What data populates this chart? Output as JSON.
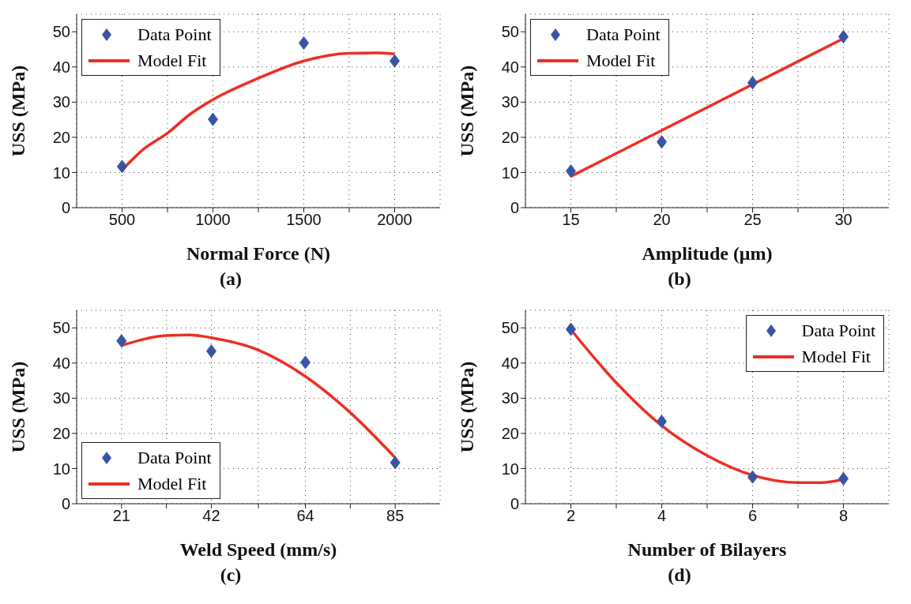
{
  "chart_data": [
    {
      "type": "scatter",
      "xlabel": "Normal Force (N)",
      "ylabel": "USS (MPa)",
      "annotations": [
        "(a)"
      ],
      "xlim": [
        250,
        2250
      ],
      "xticks": [
        500,
        {
          "value": 750,
          "label": null
        },
        1000,
        {
          "value": 1250,
          "label": null
        },
        1500,
        {
          "value": 1750,
          "label": null
        },
        2000
      ],
      "ylim": [
        0,
        55
      ],
      "yticks": [
        0,
        10,
        20,
        30,
        40,
        50
      ],
      "grid": true,
      "legend": "top left",
      "series": [
        {
          "name": "Data Point",
          "type": "scatter",
          "marker": "diamond",
          "color": "#3a54a4",
          "x": [
            500,
            1000,
            1500,
            2000
          ],
          "values": [
            11.7,
            25.1,
            46.8,
            41.7
          ]
        },
        {
          "name": "Model Fit",
          "type": "line",
          "marker": "none",
          "line_style": "solid",
          "color": "#ee2e24",
          "x": [
            500,
            625,
            750,
            875,
            1000,
            1250,
            1500,
            1750,
            1900,
            2000
          ],
          "values": [
            10.7,
            16.9,
            21.2,
            26.6,
            30.7,
            36.8,
            41.7,
            43.9,
            44,
            43.7
          ]
        }
      ]
    },
    {
      "type": "scatter",
      "xlabel": "Amplitude (μm)",
      "ylabel": "USS (MPa)",
      "annotations": [
        "(b)"
      ],
      "xlim": [
        12.5,
        32.5
      ],
      "xticks": [
        15,
        {
          "value": 17.5,
          "label": null
        },
        20,
        {
          "value": 22.5,
          "label": null
        },
        25,
        {
          "value": 27.5,
          "label": null
        },
        30
      ],
      "ylim": [
        0,
        55
      ],
      "yticks": [
        0,
        10,
        20,
        30,
        40,
        50
      ],
      "grid": true,
      "legend": "top left",
      "series": [
        {
          "name": "Data Point",
          "type": "scatter",
          "marker": "diamond",
          "color": "#3a54a4",
          "x": [
            15,
            20,
            25,
            30
          ],
          "values": [
            10.4,
            18.7,
            35.5,
            48.6
          ]
        },
        {
          "name": "Model Fit",
          "type": "line",
          "marker": "none",
          "line_style": "solid",
          "color": "#ee2e24",
          "x": [
            15,
            30
          ],
          "values": [
            8.9,
            48.1
          ]
        }
      ]
    },
    {
      "type": "scatter",
      "xlabel": "Weld Speed (mm/s)",
      "ylabel": "USS (MPa)",
      "annotations": [
        "(c)"
      ],
      "xlim": [
        10.5,
        95.5
      ],
      "xticks": [
        21,
        {
          "value": 31.5,
          "label": null
        },
        42,
        {
          "value": 53,
          "label": null
        },
        64,
        {
          "value": 74.5,
          "label": null
        },
        85
      ],
      "ylim": [
        0,
        55
      ],
      "yticks": [
        0,
        10,
        20,
        30,
        40,
        50
      ],
      "grid": true,
      "legend": "bottom left",
      "series": [
        {
          "name": "Data Point",
          "type": "scatter",
          "marker": "diamond",
          "color": "#3a54a4",
          "x": [
            21,
            42,
            64,
            85
          ],
          "values": [
            46.3,
            43.4,
            40.2,
            11.7
          ]
        },
        {
          "name": "Model Fit",
          "type": "line",
          "marker": "none",
          "line_style": "solid",
          "color": "#ee2e24",
          "x": [
            21,
            31.5,
            37,
            42,
            53,
            64,
            74.5,
            85
          ],
          "values": [
            45,
            47.8,
            48,
            47.2,
            43.7,
            36.2,
            25.9,
            13.1
          ]
        }
      ]
    },
    {
      "type": "scatter",
      "xlabel": "Number of Bilayers",
      "ylabel": "USS (MPa)",
      "annotations": [
        "(d)"
      ],
      "xlim": [
        1,
        9
      ],
      "xticks": [
        2,
        {
          "value": 3,
          "label": null
        },
        4,
        {
          "value": 5,
          "label": null
        },
        6,
        {
          "value": 7,
          "label": null
        },
        8
      ],
      "ylim": [
        0,
        55
      ],
      "yticks": [
        0,
        10,
        20,
        30,
        40,
        50
      ],
      "grid": true,
      "legend": "top right",
      "series": [
        {
          "name": "Data Point",
          "type": "scatter",
          "marker": "diamond",
          "color": "#3a54a4",
          "x": [
            2,
            4,
            6,
            8
          ],
          "values": [
            49.6,
            23.4,
            7.6,
            7.1
          ]
        },
        {
          "name": "Model Fit",
          "type": "line",
          "marker": "none",
          "line_style": "solid",
          "color": "#ee2e24",
          "x": [
            2,
            3,
            4,
            5,
            6,
            7,
            7.5,
            8
          ],
          "values": [
            49.5,
            34.4,
            22.2,
            13.7,
            8.1,
            6,
            6,
            6.9
          ]
        }
      ]
    }
  ]
}
